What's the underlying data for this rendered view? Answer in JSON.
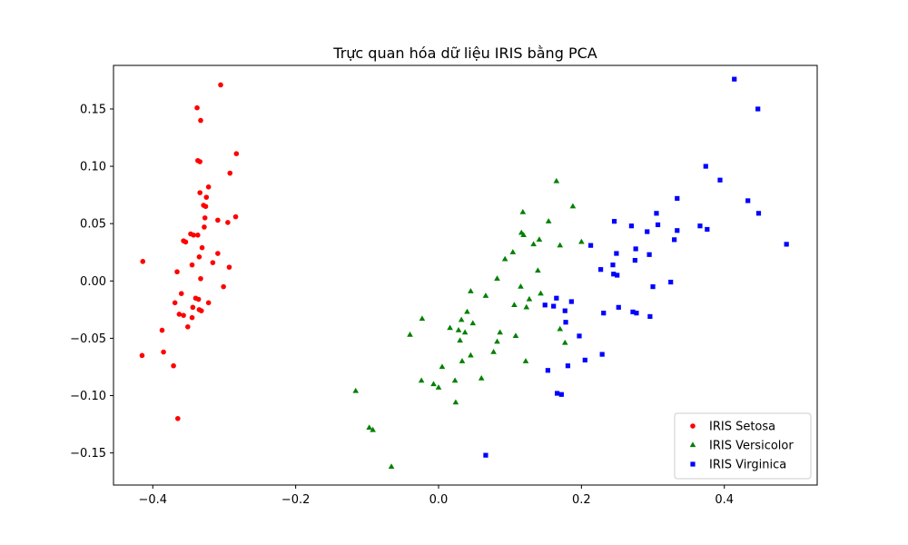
{
  "chart_data": {
    "type": "scatter",
    "title": "Trực quan hóa dữ liệu IRIS bằng PCA",
    "xlabel": "",
    "ylabel": "",
    "xlim": [
      -0.455,
      0.53
    ],
    "ylim": [
      -0.178,
      0.188
    ],
    "xticks": [
      -0.4,
      -0.2,
      0.0,
      0.2,
      0.4
    ],
    "xtick_labels": [
      "−0.4",
      "−0.2",
      "0.0",
      "0.2",
      "0.4"
    ],
    "yticks": [
      -0.15,
      -0.1,
      -0.05,
      0.0,
      0.05,
      0.1,
      0.15
    ],
    "ytick_labels": [
      "−0.15",
      "−0.10",
      "−0.05",
      "0.00",
      "0.05",
      "0.10",
      "0.15"
    ],
    "grid": false,
    "legend_position": "bottom-right",
    "series": [
      {
        "name": "IRIS Setosa",
        "color": "#ff0000",
        "marker": "circle",
        "points": [
          [
            -0.305,
            0.171
          ],
          [
            -0.338,
            0.151
          ],
          [
            -0.333,
            0.14
          ],
          [
            -0.283,
            0.111
          ],
          [
            -0.337,
            0.105
          ],
          [
            -0.334,
            0.104
          ],
          [
            -0.292,
            0.094
          ],
          [
            -0.322,
            0.082
          ],
          [
            -0.334,
            0.077
          ],
          [
            -0.325,
            0.073
          ],
          [
            -0.329,
            0.066
          ],
          [
            -0.326,
            0.065
          ],
          [
            -0.284,
            0.056
          ],
          [
            -0.327,
            0.055
          ],
          [
            -0.309,
            0.053
          ],
          [
            -0.295,
            0.051
          ],
          [
            -0.328,
            0.047
          ],
          [
            -0.347,
            0.041
          ],
          [
            -0.343,
            0.04
          ],
          [
            -0.337,
            0.04
          ],
          [
            -0.357,
            0.035
          ],
          [
            -0.354,
            0.034
          ],
          [
            -0.331,
            0.029
          ],
          [
            -0.309,
            0.024
          ],
          [
            -0.335,
            0.021
          ],
          [
            -0.414,
            0.017
          ],
          [
            -0.316,
            0.016
          ],
          [
            -0.345,
            0.014
          ],
          [
            -0.293,
            0.012
          ],
          [
            -0.366,
            0.008
          ],
          [
            -0.333,
            0.002
          ],
          [
            -0.301,
            -0.005
          ],
          [
            -0.36,
            -0.011
          ],
          [
            -0.34,
            -0.015
          ],
          [
            -0.336,
            -0.016
          ],
          [
            -0.369,
            -0.019
          ],
          [
            -0.322,
            -0.019
          ],
          [
            -0.344,
            -0.023
          ],
          [
            -0.335,
            -0.025
          ],
          [
            -0.332,
            -0.026
          ],
          [
            -0.363,
            -0.029
          ],
          [
            -0.357,
            -0.03
          ],
          [
            -0.345,
            -0.032
          ],
          [
            -0.351,
            -0.04
          ],
          [
            -0.387,
            -0.043
          ],
          [
            -0.385,
            -0.062
          ],
          [
            -0.415,
            -0.065
          ],
          [
            -0.371,
            -0.074
          ],
          [
            -0.365,
            -0.12
          ]
        ]
      },
      {
        "name": "IRIS Versicolor",
        "color": "#008000",
        "marker": "triangle",
        "points": [
          [
            0.165,
            0.087
          ],
          [
            0.188,
            0.065
          ],
          [
            0.118,
            0.06
          ],
          [
            0.154,
            0.052
          ],
          [
            0.116,
            0.042
          ],
          [
            0.119,
            0.04
          ],
          [
            0.141,
            0.036
          ],
          [
            0.2,
            0.034
          ],
          [
            0.133,
            0.032
          ],
          [
            0.17,
            0.031
          ],
          [
            0.104,
            0.025
          ],
          [
            0.093,
            0.019
          ],
          [
            0.139,
            0.009
          ],
          [
            0.082,
            0.002
          ],
          [
            0.115,
            -0.005
          ],
          [
            0.045,
            -0.009
          ],
          [
            0.066,
            -0.013
          ],
          [
            0.143,
            -0.011
          ],
          [
            0.127,
            -0.016
          ],
          [
            0.106,
            -0.021
          ],
          [
            0.123,
            -0.023
          ],
          [
            0.04,
            -0.027
          ],
          [
            0.032,
            -0.034
          ],
          [
            -0.023,
            -0.033
          ],
          [
            0.048,
            -0.037
          ],
          [
            0.016,
            -0.041
          ],
          [
            0.028,
            -0.043
          ],
          [
            0.037,
            -0.045
          ],
          [
            0.17,
            -0.042
          ],
          [
            0.086,
            -0.045
          ],
          [
            -0.04,
            -0.047
          ],
          [
            0.108,
            -0.048
          ],
          [
            0.082,
            -0.053
          ],
          [
            0.03,
            -0.052
          ],
          [
            0.177,
            -0.054
          ],
          [
            0.077,
            -0.062
          ],
          [
            0.045,
            -0.065
          ],
          [
            0.122,
            -0.07
          ],
          [
            0.033,
            -0.07
          ],
          [
            0.005,
            -0.075
          ],
          [
            0.06,
            -0.085
          ],
          [
            -0.024,
            -0.087
          ],
          [
            0.023,
            -0.087
          ],
          [
            -0.007,
            -0.09
          ],
          [
            0.0,
            -0.093
          ],
          [
            -0.116,
            -0.096
          ],
          [
            0.024,
            -0.106
          ],
          [
            -0.097,
            -0.128
          ],
          [
            -0.092,
            -0.13
          ],
          [
            -0.066,
            -0.162
          ]
        ]
      },
      {
        "name": "IRIS Virginica",
        "color": "#0000ff",
        "marker": "square",
        "points": [
          [
            0.414,
            0.176
          ],
          [
            0.447,
            0.15
          ],
          [
            0.374,
            0.1
          ],
          [
            0.394,
            0.088
          ],
          [
            0.334,
            0.072
          ],
          [
            0.433,
            0.07
          ],
          [
            0.305,
            0.059
          ],
          [
            0.448,
            0.059
          ],
          [
            0.246,
            0.052
          ],
          [
            0.307,
            0.049
          ],
          [
            0.366,
            0.048
          ],
          [
            0.27,
            0.048
          ],
          [
            0.376,
            0.045
          ],
          [
            0.334,
            0.044
          ],
          [
            0.292,
            0.043
          ],
          [
            0.33,
            0.036
          ],
          [
            0.213,
            0.031
          ],
          [
            0.487,
            0.032
          ],
          [
            0.276,
            0.028
          ],
          [
            0.249,
            0.024
          ],
          [
            0.295,
            0.023
          ],
          [
            0.275,
            0.018
          ],
          [
            0.244,
            0.014
          ],
          [
            0.227,
            0.01
          ],
          [
            0.245,
            0.006
          ],
          [
            0.25,
            0.005
          ],
          [
            0.325,
            -0.001
          ],
          [
            0.3,
            -0.005
          ],
          [
            0.165,
            -0.015
          ],
          [
            0.186,
            -0.018
          ],
          [
            0.149,
            -0.021
          ],
          [
            0.161,
            -0.022
          ],
          [
            0.177,
            -0.026
          ],
          [
            0.252,
            -0.023
          ],
          [
            0.231,
            -0.028
          ],
          [
            0.272,
            -0.027
          ],
          [
            0.277,
            -0.028
          ],
          [
            0.296,
            -0.031
          ],
          [
            0.178,
            -0.036
          ],
          [
            0.197,
            -0.048
          ],
          [
            0.229,
            -0.064
          ],
          [
            0.205,
            -0.069
          ],
          [
            0.181,
            -0.074
          ],
          [
            0.153,
            -0.078
          ],
          [
            0.166,
            -0.098
          ],
          [
            0.172,
            -0.099
          ],
          [
            0.066,
            -0.152
          ]
        ]
      }
    ]
  }
}
